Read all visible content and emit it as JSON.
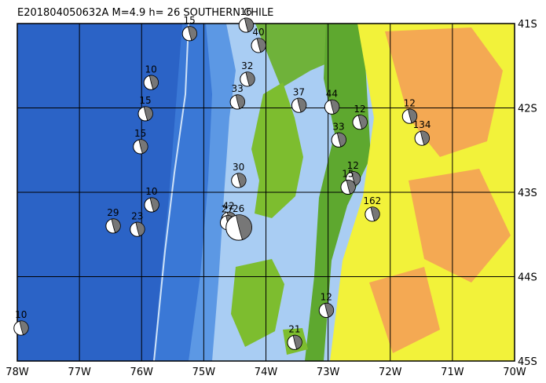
{
  "map": {
    "title": "E201804050632A M=4.9 h= 26 SOUTHERN CHILE",
    "lon_range": [
      -78,
      -70
    ],
    "lat_range": [
      -41,
      -45
    ],
    "lon_ticks": [
      {
        "value": -78,
        "label": "78W"
      },
      {
        "value": -77,
        "label": "77W"
      },
      {
        "value": -76,
        "label": "76W"
      },
      {
        "value": -75,
        "label": "75W"
      },
      {
        "value": -74,
        "label": "74W"
      },
      {
        "value": -73,
        "label": "73W"
      },
      {
        "value": -72,
        "label": "72W"
      },
      {
        "value": -71,
        "label": "71W"
      },
      {
        "value": -70,
        "label": "70W"
      }
    ],
    "lat_ticks": [
      {
        "value": -41,
        "label": "41S"
      },
      {
        "value": -42,
        "label": "42S"
      },
      {
        "value": -43,
        "label": "43S"
      },
      {
        "value": -44,
        "label": "44S"
      },
      {
        "value": -45,
        "label": "45S"
      }
    ],
    "events": [
      {
        "depth": 15,
        "lon": -75.23,
        "lat": -41.12
      },
      {
        "depth": 16,
        "lon": -74.32,
        "lat": -41.02
      },
      {
        "depth": 40,
        "lon": -74.12,
        "lat": -41.26
      },
      {
        "depth": 10,
        "lon": -75.85,
        "lat": -41.7
      },
      {
        "depth": 32,
        "lon": -74.3,
        "lat": -41.66
      },
      {
        "depth": 33,
        "lon": -74.46,
        "lat": -41.93
      },
      {
        "depth": 15,
        "lon": -75.94,
        "lat": -42.07
      },
      {
        "depth": 15,
        "lon": -76.02,
        "lat": -42.46
      },
      {
        "depth": 37,
        "lon": -73.47,
        "lat": -41.97
      },
      {
        "depth": 44,
        "lon": -72.94,
        "lat": -41.99
      },
      {
        "depth": 12,
        "lon": -72.49,
        "lat": -42.17
      },
      {
        "depth": 12,
        "lon": -71.69,
        "lat": -42.1
      },
      {
        "depth": 134,
        "lon": -71.49,
        "lat": -42.36
      },
      {
        "depth": 33,
        "lon": -72.83,
        "lat": -42.38
      },
      {
        "depth": 30,
        "lon": -74.44,
        "lat": -42.86
      },
      {
        "depth": 12,
        "lon": -72.6,
        "lat": -42.84
      },
      {
        "depth": 15,
        "lon": -72.68,
        "lat": -42.94
      },
      {
        "depth": 10,
        "lon": -75.84,
        "lat": -43.15
      },
      {
        "depth": 42,
        "lon": -74.6,
        "lat": -43.32
      },
      {
        "depth": 27,
        "lon": -74.62,
        "lat": -43.36
      },
      {
        "depth": 26,
        "lon": -74.44,
        "lat": -43.42
      },
      {
        "depth": 162,
        "lon": -72.29,
        "lat": -43.26
      },
      {
        "depth": 29,
        "lon": -76.46,
        "lat": -43.4
      },
      {
        "depth": 23,
        "lon": -76.07,
        "lat": -43.44
      },
      {
        "depth": 12,
        "lon": -73.03,
        "lat": -44.4
      },
      {
        "depth": 21,
        "lon": -73.54,
        "lat": -44.78
      },
      {
        "depth": 10,
        "lon": -77.94,
        "lat": -44.61
      }
    ]
  }
}
